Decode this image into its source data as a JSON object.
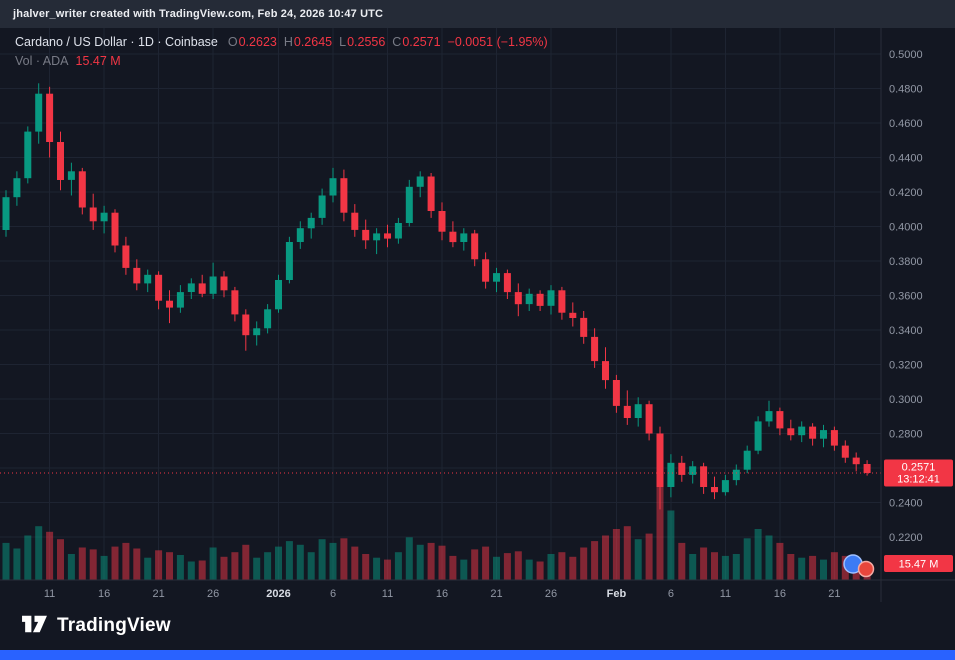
{
  "attribution": {
    "text": "jhalver_writer created with TradingView.com, Feb 24, 2026 10:47 UTC"
  },
  "legend": {
    "title": "Cardano / US Dollar · 1D · Coinbase",
    "ohlc": [
      {
        "key": "O",
        "value": "0.2623"
      },
      {
        "key": "H",
        "value": "0.2645"
      },
      {
        "key": "L",
        "value": "0.2556"
      },
      {
        "key": "C",
        "value": "0.2571"
      }
    ],
    "change": "−0.0051 (−1.95%)",
    "vol_label": "Vol · ADA",
    "vol_value": "15.47 M"
  },
  "price_axis": {
    "current_price": "0.2571",
    "countdown": "13:12:41",
    "volume_badge": "15.47 M"
  },
  "footer": {
    "brand": "TradingView"
  },
  "colors": {
    "up": "#089981",
    "down": "#f23645",
    "background": "#131722",
    "grid": "#1e2432",
    "axis_text": "#9298a5",
    "accent_bar": "#2962ff"
  },
  "chart_data": {
    "type": "candlestick",
    "title": "Cardano / US Dollar · 1D · Coinbase",
    "ylim": [
      0.22,
      0.515
    ],
    "grid": true,
    "current_price": 0.2571,
    "volume_axis_max": 110,
    "y_ticks": [
      {
        "value": 0.5,
        "label": "0.5000"
      },
      {
        "value": 0.48,
        "label": "0.4800"
      },
      {
        "value": 0.46,
        "label": "0.4600"
      },
      {
        "value": 0.44,
        "label": "0.4400"
      },
      {
        "value": 0.42,
        "label": "0.4200"
      },
      {
        "value": 0.4,
        "label": "0.4000"
      },
      {
        "value": 0.38,
        "label": "0.3800"
      },
      {
        "value": 0.36,
        "label": "0.3600"
      },
      {
        "value": 0.34,
        "label": "0.3400"
      },
      {
        "value": 0.32,
        "label": "0.3200"
      },
      {
        "value": 0.3,
        "label": "0.3000"
      },
      {
        "value": 0.28,
        "label": "0.2800"
      },
      {
        "value": 0.26,
        "label": ""
      },
      {
        "value": 0.24,
        "label": "0.2400"
      },
      {
        "value": 0.22,
        "label": "0.2200"
      }
    ],
    "x_ticks": [
      {
        "index": 4,
        "label": "11",
        "major": false
      },
      {
        "index": 9,
        "label": "16",
        "major": false
      },
      {
        "index": 14,
        "label": "21",
        "major": false
      },
      {
        "index": 19,
        "label": "26",
        "major": false
      },
      {
        "index": 25,
        "label": "2026",
        "major": true
      },
      {
        "index": 30,
        "label": "6",
        "major": false
      },
      {
        "index": 35,
        "label": "11",
        "major": false
      },
      {
        "index": 40,
        "label": "16",
        "major": false
      },
      {
        "index": 45,
        "label": "21",
        "major": false
      },
      {
        "index": 50,
        "label": "26",
        "major": false
      },
      {
        "index": 56,
        "label": "Feb",
        "major": true
      },
      {
        "index": 61,
        "label": "6",
        "major": false
      },
      {
        "index": 66,
        "label": "11",
        "major": false
      },
      {
        "index": 71,
        "label": "16",
        "major": false
      },
      {
        "index": 76,
        "label": "21",
        "major": false
      }
    ],
    "candles_format": [
      "open",
      "high",
      "low",
      "close",
      "volume_millions"
    ],
    "candles": [
      [
        0.398,
        0.421,
        0.394,
        0.417,
        40
      ],
      [
        0.417,
        0.432,
        0.412,
        0.428,
        34
      ],
      [
        0.428,
        0.458,
        0.425,
        0.455,
        48
      ],
      [
        0.455,
        0.483,
        0.448,
        0.477,
        58
      ],
      [
        0.477,
        0.481,
        0.44,
        0.449,
        52
      ],
      [
        0.449,
        0.455,
        0.421,
        0.427,
        44
      ],
      [
        0.427,
        0.437,
        0.418,
        0.432,
        28
      ],
      [
        0.432,
        0.434,
        0.407,
        0.411,
        35
      ],
      [
        0.411,
        0.419,
        0.398,
        0.403,
        33
      ],
      [
        0.403,
        0.412,
        0.396,
        0.408,
        26
      ],
      [
        0.408,
        0.41,
        0.385,
        0.389,
        36
      ],
      [
        0.389,
        0.394,
        0.372,
        0.376,
        40
      ],
      [
        0.376,
        0.381,
        0.363,
        0.367,
        34
      ],
      [
        0.367,
        0.375,
        0.362,
        0.372,
        24
      ],
      [
        0.372,
        0.374,
        0.352,
        0.357,
        32
      ],
      [
        0.357,
        0.363,
        0.344,
        0.353,
        30
      ],
      [
        0.353,
        0.366,
        0.35,
        0.362,
        27
      ],
      [
        0.362,
        0.37,
        0.358,
        0.367,
        20
      ],
      [
        0.367,
        0.372,
        0.359,
        0.361,
        21
      ],
      [
        0.361,
        0.379,
        0.358,
        0.371,
        35
      ],
      [
        0.371,
        0.374,
        0.359,
        0.363,
        25
      ],
      [
        0.363,
        0.365,
        0.345,
        0.349,
        30
      ],
      [
        0.349,
        0.352,
        0.328,
        0.337,
        38
      ],
      [
        0.337,
        0.345,
        0.331,
        0.341,
        24
      ],
      [
        0.341,
        0.355,
        0.338,
        0.352,
        30
      ],
      [
        0.352,
        0.372,
        0.35,
        0.369,
        36
      ],
      [
        0.369,
        0.394,
        0.367,
        0.391,
        42
      ],
      [
        0.391,
        0.403,
        0.387,
        0.399,
        38
      ],
      [
        0.399,
        0.408,
        0.393,
        0.405,
        30
      ],
      [
        0.405,
        0.422,
        0.401,
        0.418,
        44
      ],
      [
        0.418,
        0.434,
        0.414,
        0.428,
        40
      ],
      [
        0.428,
        0.433,
        0.403,
        0.408,
        45
      ],
      [
        0.408,
        0.413,
        0.394,
        0.398,
        36
      ],
      [
        0.398,
        0.404,
        0.387,
        0.392,
        28
      ],
      [
        0.392,
        0.399,
        0.384,
        0.396,
        24
      ],
      [
        0.396,
        0.401,
        0.388,
        0.393,
        22
      ],
      [
        0.393,
        0.405,
        0.39,
        0.402,
        30
      ],
      [
        0.402,
        0.427,
        0.4,
        0.423,
        46
      ],
      [
        0.423,
        0.432,
        0.417,
        0.429,
        38
      ],
      [
        0.429,
        0.431,
        0.405,
        0.409,
        40
      ],
      [
        0.409,
        0.414,
        0.392,
        0.397,
        37
      ],
      [
        0.397,
        0.403,
        0.388,
        0.391,
        26
      ],
      [
        0.391,
        0.399,
        0.386,
        0.396,
        22
      ],
      [
        0.396,
        0.398,
        0.377,
        0.381,
        33
      ],
      [
        0.381,
        0.385,
        0.364,
        0.368,
        36
      ],
      [
        0.368,
        0.376,
        0.362,
        0.373,
        25
      ],
      [
        0.373,
        0.375,
        0.358,
        0.362,
        29
      ],
      [
        0.362,
        0.367,
        0.348,
        0.355,
        31
      ],
      [
        0.355,
        0.364,
        0.351,
        0.361,
        22
      ],
      [
        0.361,
        0.363,
        0.351,
        0.354,
        20
      ],
      [
        0.354,
        0.366,
        0.349,
        0.363,
        28
      ],
      [
        0.363,
        0.365,
        0.346,
        0.35,
        30
      ],
      [
        0.35,
        0.356,
        0.342,
        0.347,
        25
      ],
      [
        0.347,
        0.351,
        0.332,
        0.336,
        35
      ],
      [
        0.336,
        0.341,
        0.318,
        0.322,
        42
      ],
      [
        0.322,
        0.33,
        0.306,
        0.311,
        48
      ],
      [
        0.311,
        0.314,
        0.292,
        0.296,
        55
      ],
      [
        0.296,
        0.305,
        0.285,
        0.289,
        58
      ],
      [
        0.289,
        0.301,
        0.284,
        0.297,
        44
      ],
      [
        0.297,
        0.299,
        0.276,
        0.28,
        50
      ],
      [
        0.28,
        0.284,
        0.236,
        0.249,
        108
      ],
      [
        0.249,
        0.268,
        0.243,
        0.263,
        75
      ],
      [
        0.263,
        0.267,
        0.252,
        0.256,
        40
      ],
      [
        0.256,
        0.264,
        0.251,
        0.261,
        28
      ],
      [
        0.261,
        0.263,
        0.245,
        0.249,
        35
      ],
      [
        0.249,
        0.255,
        0.242,
        0.246,
        30
      ],
      [
        0.246,
        0.256,
        0.244,
        0.253,
        26
      ],
      [
        0.253,
        0.262,
        0.25,
        0.259,
        28
      ],
      [
        0.259,
        0.273,
        0.257,
        0.27,
        45
      ],
      [
        0.27,
        0.29,
        0.268,
        0.287,
        55
      ],
      [
        0.287,
        0.299,
        0.284,
        0.293,
        48
      ],
      [
        0.293,
        0.295,
        0.279,
        0.283,
        40
      ],
      [
        0.283,
        0.288,
        0.276,
        0.279,
        28
      ],
      [
        0.279,
        0.287,
        0.275,
        0.284,
        24
      ],
      [
        0.284,
        0.286,
        0.273,
        0.277,
        26
      ],
      [
        0.277,
        0.285,
        0.272,
        0.282,
        22
      ],
      [
        0.282,
        0.284,
        0.27,
        0.273,
        30
      ],
      [
        0.273,
        0.276,
        0.263,
        0.266,
        26
      ],
      [
        0.266,
        0.269,
        0.258,
        0.2622,
        22
      ],
      [
        0.2623,
        0.2645,
        0.2556,
        0.2571,
        15.47
      ]
    ]
  }
}
